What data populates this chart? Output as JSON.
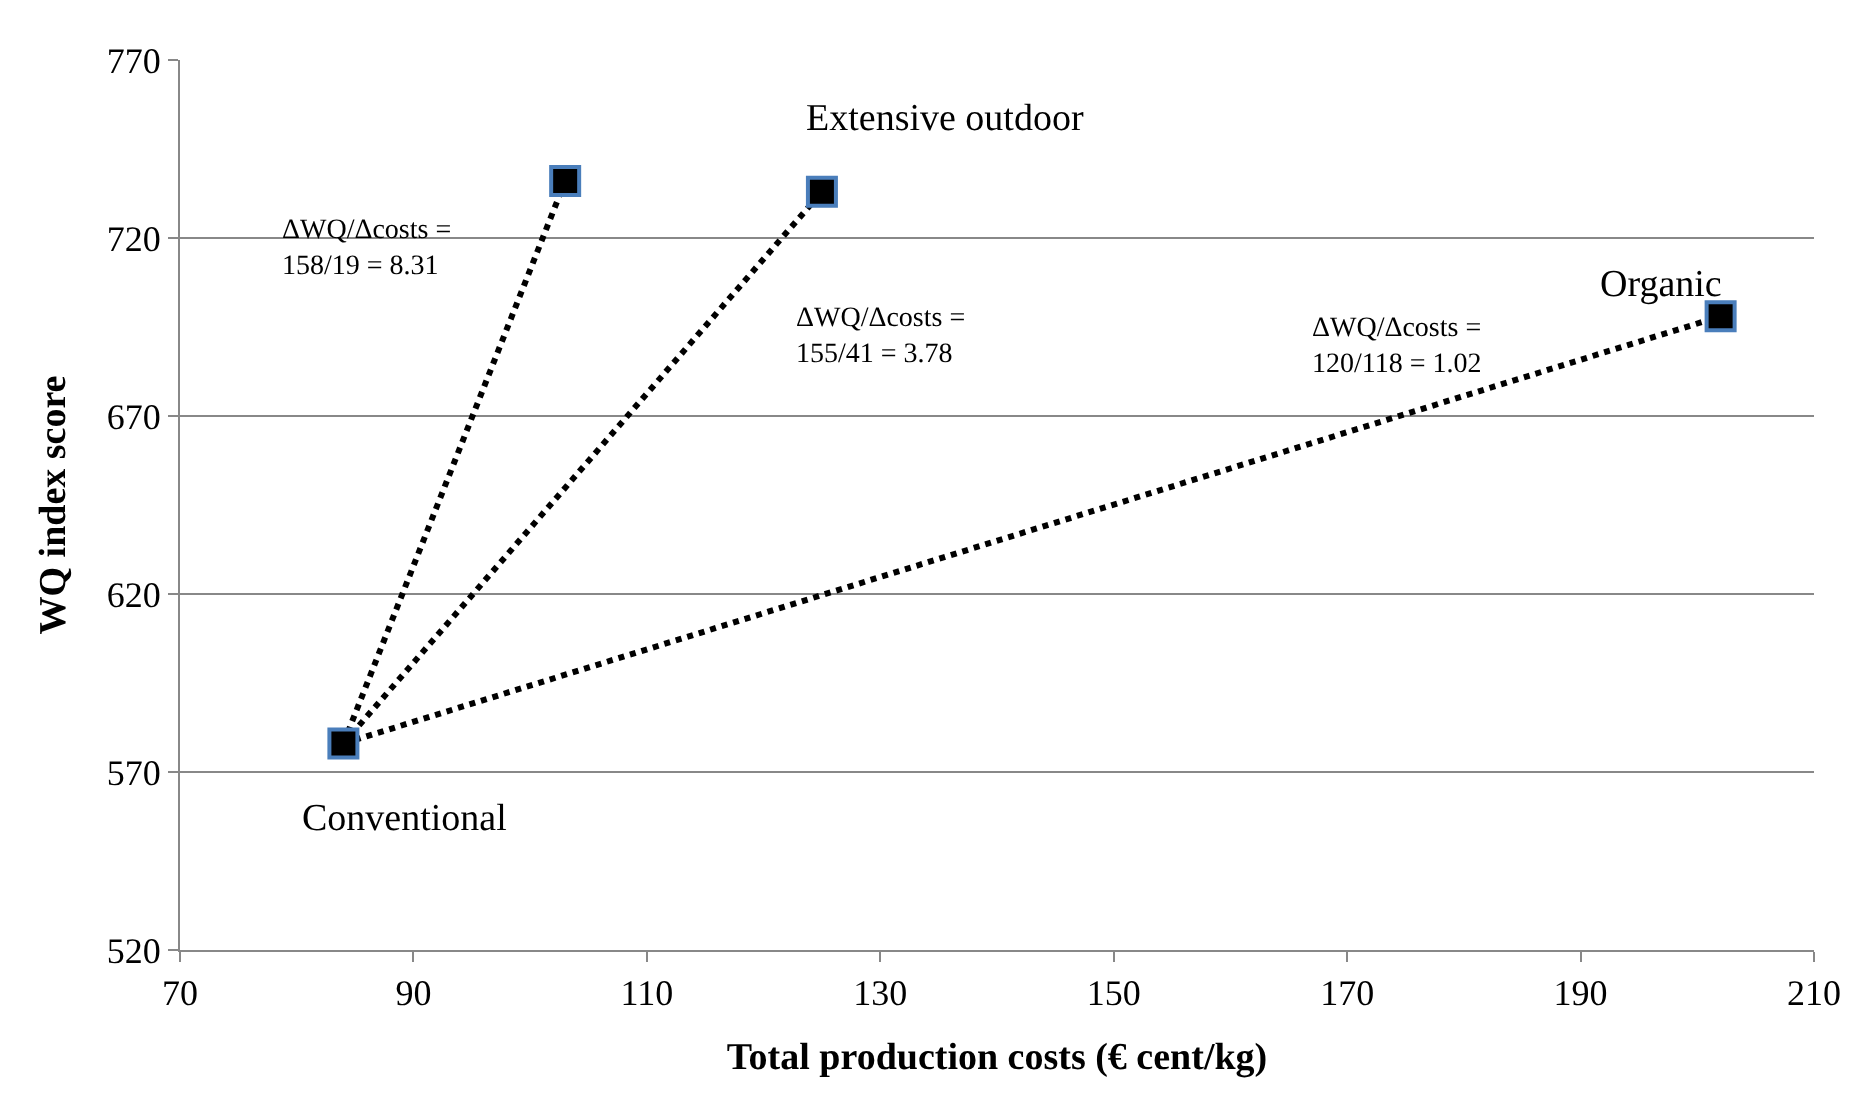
{
  "chart_data": {
    "type": "scatter",
    "xlabel": "Total production costs (€ cent/kg)",
    "ylabel": "WQ index score",
    "xlim": [
      70,
      210
    ],
    "xticks": [
      70,
      90,
      110,
      130,
      150,
      170,
      190,
      210
    ],
    "ylim": [
      520,
      770
    ],
    "yticks": [
      520,
      570,
      620,
      670,
      720,
      770
    ],
    "grid": "y",
    "series": [
      {
        "type": "line",
        "color": "#000000",
        "x": [
          84,
          103
        ],
        "values": [
          578,
          736
        ],
        "line_style": "dotted",
        "marker": "none"
      },
      {
        "type": "line",
        "color": "#000000",
        "x": [
          84,
          125
        ],
        "values": [
          578,
          733
        ],
        "line_style": "dotted",
        "marker": "none"
      },
      {
        "type": "line",
        "color": "#000000",
        "x": [
          84,
          202
        ],
        "values": [
          578,
          698
        ],
        "line_style": "dotted",
        "marker": "none"
      },
      {
        "color": "#000000",
        "x": [
          84,
          103,
          125,
          202
        ],
        "values": [
          578,
          736,
          733,
          698
        ],
        "marker": "square"
      }
    ],
    "annotations": [
      {
        "text": "Conventional",
        "x": 84,
        "y": 578
      },
      {
        "text": "Extensive outdoor",
        "x": 125,
        "y": 733
      },
      {
        "text": "Organic",
        "x": 202,
        "y": 698
      },
      "ΔWQ/Δcosts =\n158/19 = 8.31",
      "ΔWQ/Δcosts =\n155/41 = 3.78",
      "ΔWQ/Δcosts =\n120/118 = 1.02"
    ]
  }
}
